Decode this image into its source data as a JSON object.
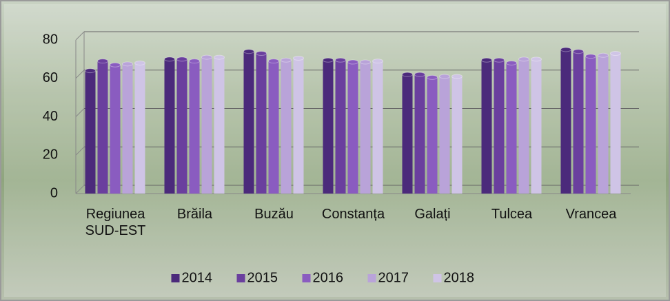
{
  "chart_data": {
    "type": "bar",
    "categories": [
      "Regiunea SUD-EST",
      "Brăila",
      "Buzău",
      "Constanța",
      "Galați",
      "Tulcea",
      "Vrancea"
    ],
    "series": [
      {
        "name": "2014",
        "color": "#4b2a7b",
        "values": [
          64,
          70,
          74,
          69.5,
          62,
          69.5,
          75
        ]
      },
      {
        "name": "2015",
        "color": "#6a3f9e",
        "values": [
          69,
          70,
          73,
          69.5,
          62,
          69.5,
          74
        ]
      },
      {
        "name": "2016",
        "color": "#8a5cc0",
        "values": [
          67,
          69,
          69,
          68.5,
          60.5,
          68,
          71.5
        ]
      },
      {
        "name": "2017",
        "color": "#b9a3d9",
        "values": [
          67.5,
          71,
          69.5,
          68.5,
          61,
          70,
          72
        ]
      },
      {
        "name": "2018",
        "color": "#cfc4e6",
        "values": [
          68,
          71,
          70.5,
          69,
          61,
          70,
          73
        ]
      }
    ],
    "ylim": [
      0,
      80
    ],
    "yticks": [
      0,
      20,
      40,
      60,
      80
    ],
    "grid": true,
    "legend": "bottom"
  }
}
